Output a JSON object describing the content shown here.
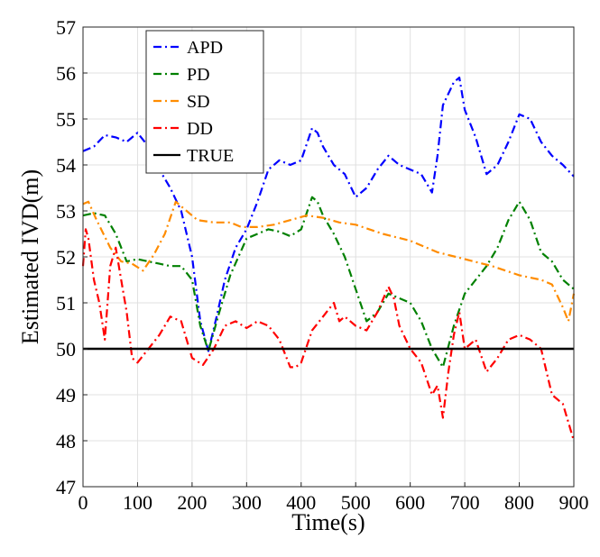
{
  "chart_data": {
    "type": "line",
    "title": "",
    "xlabel": "Time(s)",
    "ylabel": "Estimated IVD(m)",
    "xlim": [
      0,
      900
    ],
    "ylim": [
      47,
      57
    ],
    "xticks": [
      0,
      100,
      200,
      300,
      400,
      500,
      600,
      700,
      800,
      900
    ],
    "yticks": [
      47,
      48,
      49,
      50,
      51,
      52,
      53,
      54,
      55,
      56,
      57
    ],
    "grid": true,
    "legend_position": "top-left",
    "series": [
      {
        "name": "APD",
        "color": "#0000ff",
        "style": "dashdot",
        "x": [
          0,
          20,
          40,
          60,
          80,
          100,
          120,
          140,
          160,
          180,
          200,
          215,
          230,
          245,
          260,
          280,
          300,
          320,
          340,
          360,
          380,
          400,
          420,
          430,
          440,
          460,
          480,
          500,
          520,
          540,
          560,
          580,
          600,
          620,
          640,
          650,
          660,
          680,
          690,
          700,
          720,
          740,
          760,
          780,
          800,
          820,
          840,
          860,
          880,
          900
        ],
        "values": [
          54.3,
          54.4,
          54.65,
          54.6,
          54.5,
          54.7,
          54.4,
          53.9,
          53.5,
          53.0,
          52.0,
          50.6,
          49.95,
          50.7,
          51.5,
          52.2,
          52.6,
          53.2,
          53.9,
          54.1,
          54.0,
          54.1,
          54.8,
          54.7,
          54.4,
          54.0,
          53.8,
          53.3,
          53.5,
          53.9,
          54.2,
          54.0,
          53.9,
          53.8,
          53.4,
          54.2,
          55.3,
          55.8,
          55.9,
          55.2,
          54.6,
          53.8,
          54.0,
          54.5,
          55.1,
          55.0,
          54.5,
          54.2,
          54.0,
          53.75
        ]
      },
      {
        "name": "PD",
        "color": "#008000",
        "style": "dashdot",
        "x": [
          0,
          20,
          40,
          60,
          80,
          100,
          120,
          140,
          160,
          180,
          200,
          215,
          230,
          250,
          270,
          300,
          320,
          340,
          360,
          380,
          400,
          420,
          430,
          440,
          460,
          480,
          500,
          520,
          540,
          560,
          580,
          600,
          620,
          640,
          660,
          680,
          700,
          720,
          740,
          760,
          780,
          800,
          820,
          840,
          860,
          880,
          900
        ],
        "values": [
          52.9,
          52.95,
          52.9,
          52.5,
          51.9,
          51.95,
          51.9,
          51.85,
          51.8,
          51.8,
          51.5,
          50.5,
          49.95,
          50.8,
          51.6,
          52.4,
          52.5,
          52.6,
          52.55,
          52.45,
          52.6,
          53.3,
          53.2,
          52.9,
          52.5,
          52.0,
          51.3,
          50.6,
          50.8,
          51.2,
          51.1,
          51.0,
          50.6,
          50.0,
          49.6,
          50.5,
          51.2,
          51.5,
          51.8,
          52.2,
          52.8,
          53.2,
          52.8,
          52.1,
          51.9,
          51.5,
          51.3
        ]
      },
      {
        "name": "SD",
        "color": "#ff8c00",
        "style": "dashdot",
        "x": [
          0,
          10,
          25,
          50,
          70,
          90,
          110,
          130,
          150,
          170,
          190,
          210,
          240,
          270,
          290,
          320,
          350,
          380,
          410,
          440,
          470,
          500,
          550,
          600,
          650,
          700,
          750,
          800,
          840,
          860,
          880,
          890,
          900
        ],
        "values": [
          53.15,
          53.2,
          52.8,
          52.2,
          51.9,
          51.85,
          51.7,
          52.05,
          52.5,
          53.2,
          53.0,
          52.8,
          52.75,
          52.75,
          52.65,
          52.65,
          52.7,
          52.8,
          52.9,
          52.85,
          52.75,
          52.7,
          52.5,
          52.35,
          52.1,
          51.95,
          51.8,
          51.6,
          51.5,
          51.4,
          50.9,
          50.6,
          51.2
        ]
      },
      {
        "name": "DD",
        "color": "#ff0000",
        "style": "dashdot",
        "x": [
          0,
          5,
          10,
          20,
          30,
          40,
          50,
          60,
          70,
          80,
          90,
          100,
          120,
          140,
          160,
          180,
          200,
          220,
          240,
          260,
          280,
          300,
          320,
          340,
          360,
          380,
          390,
          400,
          420,
          440,
          460,
          470,
          480,
          500,
          520,
          540,
          560,
          570,
          580,
          600,
          620,
          640,
          650,
          660,
          670,
          680,
          690,
          700,
          720,
          740,
          760,
          780,
          800,
          820,
          840,
          860,
          880,
          900
        ],
        "values": [
          51.8,
          52.6,
          52.4,
          51.5,
          51.0,
          50.2,
          51.8,
          52.2,
          51.5,
          50.8,
          49.8,
          49.7,
          50.0,
          50.3,
          50.7,
          50.6,
          49.8,
          49.65,
          50.0,
          50.5,
          50.6,
          50.45,
          50.6,
          50.5,
          50.2,
          49.6,
          49.6,
          49.7,
          50.4,
          50.7,
          51.0,
          50.6,
          50.7,
          50.5,
          50.4,
          50.8,
          51.35,
          51.1,
          50.5,
          50.0,
          49.7,
          49.0,
          49.2,
          48.5,
          49.5,
          50.3,
          50.8,
          50.0,
          50.2,
          49.5,
          49.8,
          50.2,
          50.3,
          50.2,
          50.0,
          49.0,
          48.8,
          48.0
        ]
      },
      {
        "name": "TRUE",
        "color": "#000000",
        "style": "solid",
        "x": [
          0,
          900
        ],
        "values": [
          50,
          50
        ]
      }
    ]
  }
}
